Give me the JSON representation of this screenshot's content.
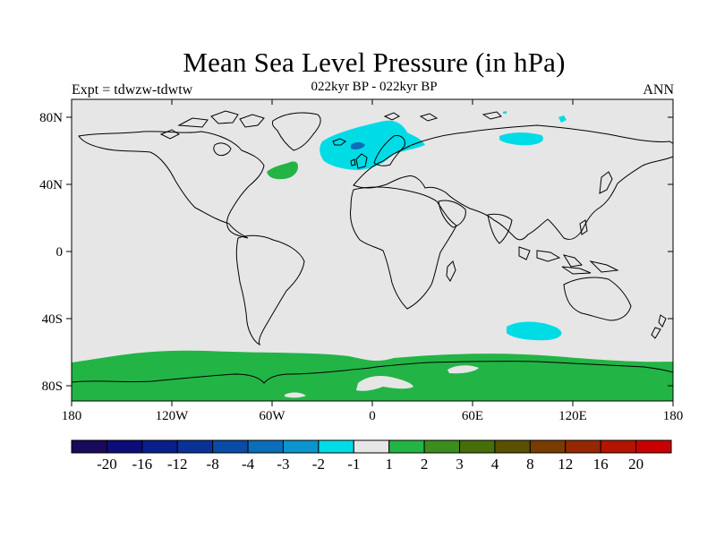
{
  "title": "Mean Sea Level Pressure (in hPa)",
  "subtitle": "022kyr BP - 022kyr BP",
  "left_label": "Expt = tdwzw-tdwtw",
  "right_label": "ANN",
  "lat_ticks": [
    "80N",
    "40N",
    "0",
    "40S",
    "80S"
  ],
  "lon_ticks": [
    "180",
    "120W",
    "60W",
    "0",
    "60E",
    "120E",
    "180"
  ],
  "colorbar": {
    "colors": [
      "#1a0a5a",
      "#0d0d78",
      "#0a1e8c",
      "#0a3296",
      "#0a4ba5",
      "#0a6eb9",
      "#0a96cd",
      "#00dce6",
      "#e6e6e6",
      "#23b446",
      "#3c8c1e",
      "#466e0a",
      "#5a5000",
      "#783c00",
      "#962800",
      "#b41400",
      "#c80000"
    ],
    "labels": [
      "-20",
      "-16",
      "-12",
      "-8",
      "-4",
      "-3",
      "-2",
      "-1",
      "1",
      "2",
      "3",
      "4",
      "8",
      "12",
      "16",
      "20"
    ]
  },
  "colors": {
    "background": "#e6e6e6",
    "positive": "#23b446",
    "negative": "#00dce6",
    "strong_negative": "#0a6eb9"
  }
}
